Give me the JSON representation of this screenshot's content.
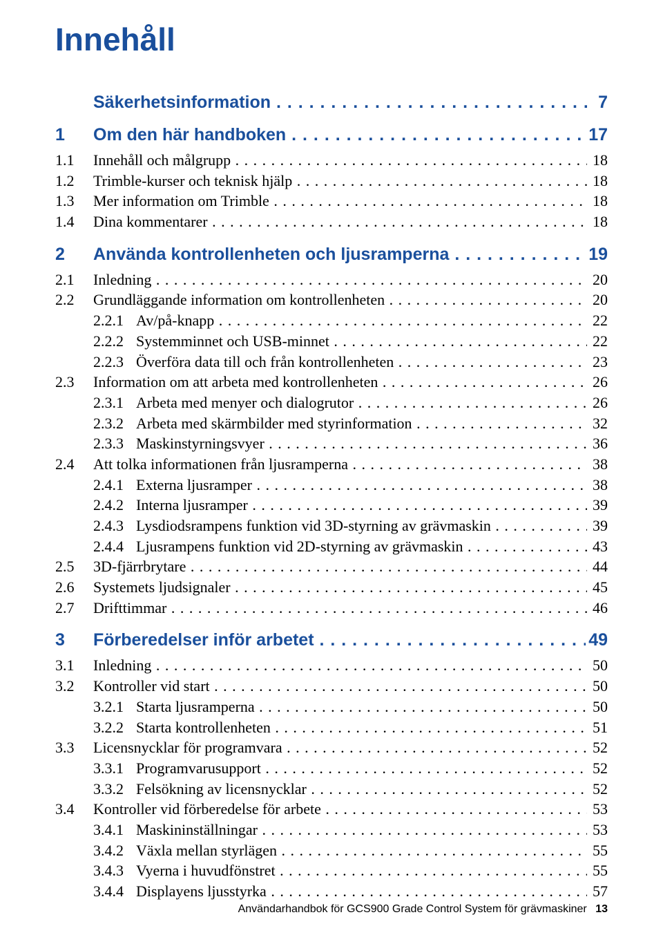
{
  "colors": {
    "accent": "#1a4f9c",
    "text": "#000000",
    "background": "#ffffff"
  },
  "title": "Innehåll",
  "footer": {
    "text": "Användarhandbok för GCS900 Grade Control System för grävmaskiner",
    "page": "13"
  },
  "entries": [
    {
      "type": "heading",
      "num": "",
      "indent": 0,
      "label": "Säkerhetsinformation",
      "page": "7",
      "extraTop": 0
    },
    {
      "type": "heading",
      "num": "1",
      "indent": 0,
      "label": "Om den här handboken",
      "page": "17",
      "extraTop": 18
    },
    {
      "type": "body",
      "num": "1.1",
      "indent": 0,
      "label": "Innehåll och målgrupp",
      "page": "18"
    },
    {
      "type": "body",
      "num": "1.2",
      "indent": 0,
      "label": "Trimble-kurser och teknisk hjälp",
      "page": "18"
    },
    {
      "type": "body",
      "num": "1.3",
      "indent": 0,
      "label": "Mer information om Trimble",
      "page": "18"
    },
    {
      "type": "body",
      "num": "1.4",
      "indent": 0,
      "label": "Dina kommentarer",
      "page": "18"
    },
    {
      "type": "heading",
      "num": "2",
      "indent": 0,
      "label": "Använda kontrollenheten och ljusramperna",
      "page": "19",
      "extraTop": 18
    },
    {
      "type": "body",
      "num": "2.1",
      "indent": 0,
      "label": "Inledning",
      "page": "20"
    },
    {
      "type": "body",
      "num": "2.2",
      "indent": 0,
      "label": "Grundläggande information om kontrollenheten",
      "page": "20"
    },
    {
      "type": "body",
      "num": "2.2.1",
      "indent": 1,
      "label": "Av/på-knapp",
      "page": "22"
    },
    {
      "type": "body",
      "num": "2.2.2",
      "indent": 1,
      "label": "Systemminnet och USB-minnet",
      "page": "22"
    },
    {
      "type": "body",
      "num": "2.2.3",
      "indent": 1,
      "label": "Överföra data till och från kontrollenheten",
      "page": "23"
    },
    {
      "type": "body",
      "num": "2.3",
      "indent": 0,
      "label": "Information om att arbeta med kontrollenheten",
      "page": "26"
    },
    {
      "type": "body",
      "num": "2.3.1",
      "indent": 1,
      "label": "Arbeta med menyer och dialogrutor",
      "page": "26"
    },
    {
      "type": "body",
      "num": "2.3.2",
      "indent": 1,
      "label": "Arbeta med skärmbilder med styrinformation",
      "page": "32"
    },
    {
      "type": "body",
      "num": "2.3.3",
      "indent": 1,
      "label": "Maskinstyrningsvyer",
      "page": "36"
    },
    {
      "type": "body",
      "num": "2.4",
      "indent": 0,
      "label": "Att tolka informationen från ljusramperna",
      "page": "38"
    },
    {
      "type": "body",
      "num": "2.4.1",
      "indent": 1,
      "label": "Externa ljusramper",
      "page": "38"
    },
    {
      "type": "body",
      "num": "2.4.2",
      "indent": 1,
      "label": "Interna ljusramper",
      "page": "39"
    },
    {
      "type": "body",
      "num": "2.4.3",
      "indent": 1,
      "label": "Lysdiodsrampens funktion vid 3D-styrning av grävmaskin",
      "page": "39"
    },
    {
      "type": "body",
      "num": "2.4.4",
      "indent": 1,
      "label": "Ljusrampens funktion vid 2D-styrning av grävmaskin",
      "page": "43"
    },
    {
      "type": "body",
      "num": "2.5",
      "indent": 0,
      "label": "3D-fjärrbrytare",
      "page": "44"
    },
    {
      "type": "body",
      "num": "2.6",
      "indent": 0,
      "label": "Systemets ljudsignaler",
      "page": "45"
    },
    {
      "type": "body",
      "num": "2.7",
      "indent": 0,
      "label": "Drifttimmar",
      "page": "46"
    },
    {
      "type": "heading",
      "num": "3",
      "indent": 0,
      "label": "Förberedelser inför arbetet",
      "page": "49",
      "extraTop": 18
    },
    {
      "type": "body",
      "num": "3.1",
      "indent": 0,
      "label": "Inledning",
      "page": "50"
    },
    {
      "type": "body",
      "num": "3.2",
      "indent": 0,
      "label": "Kontroller vid start",
      "page": "50"
    },
    {
      "type": "body",
      "num": "3.2.1",
      "indent": 1,
      "label": "Starta ljusramperna",
      "page": "50"
    },
    {
      "type": "body",
      "num": "3.2.2",
      "indent": 1,
      "label": "Starta kontrollenheten",
      "page": "51"
    },
    {
      "type": "body",
      "num": "3.3",
      "indent": 0,
      "label": "Licensnycklar för programvara",
      "page": "52"
    },
    {
      "type": "body",
      "num": "3.3.1",
      "indent": 1,
      "label": "Programvarusupport",
      "page": "52"
    },
    {
      "type": "body",
      "num": "3.3.2",
      "indent": 1,
      "label": "Felsökning av licensnycklar",
      "page": "52"
    },
    {
      "type": "body",
      "num": "3.4",
      "indent": 0,
      "label": "Kontroller vid förberedelse för arbete",
      "page": "53"
    },
    {
      "type": "body",
      "num": "3.4.1",
      "indent": 1,
      "label": "Maskininställningar",
      "page": "53"
    },
    {
      "type": "body",
      "num": "3.4.2",
      "indent": 1,
      "label": "Växla mellan styrlägen",
      "page": "55"
    },
    {
      "type": "body",
      "num": "3.4.3",
      "indent": 1,
      "label": "Vyerna i huvudfönstret",
      "page": "55"
    },
    {
      "type": "body",
      "num": "3.4.4",
      "indent": 1,
      "label": "Displayens ljusstyrka",
      "page": "57"
    }
  ]
}
